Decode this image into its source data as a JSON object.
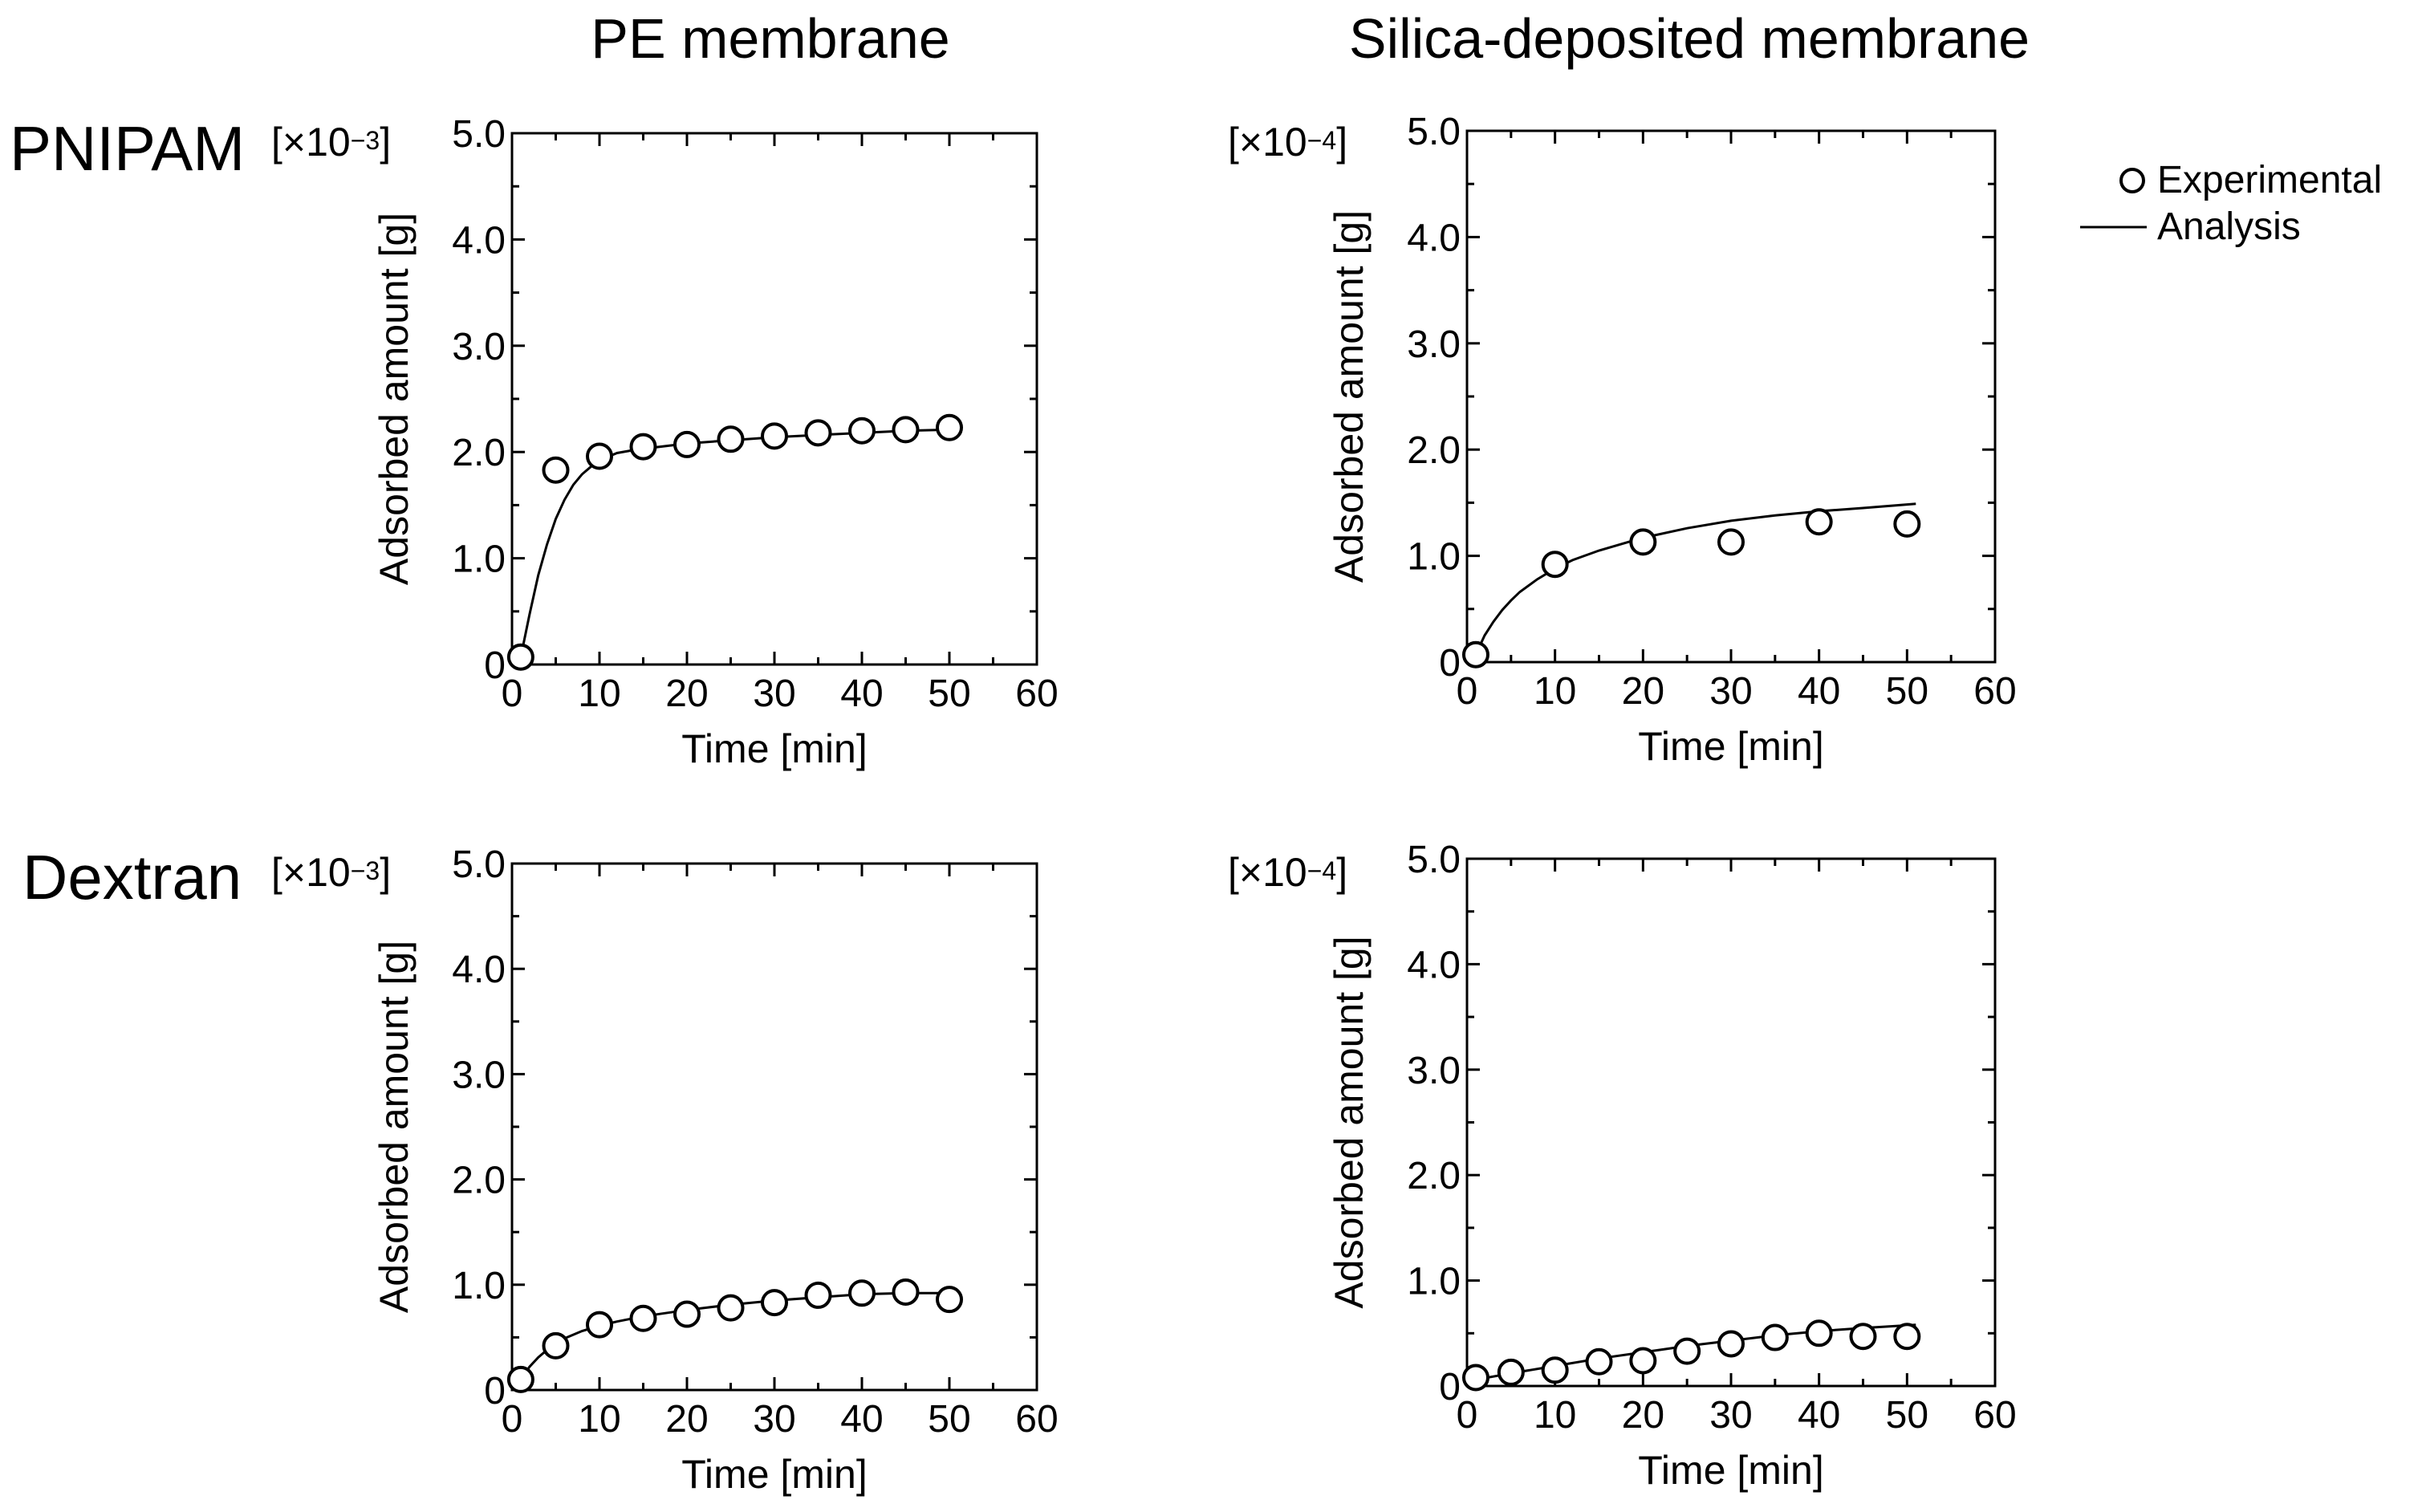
{
  "column_titles": [
    "PE membrane",
    "Silica-deposited membrane"
  ],
  "row_titles": [
    "PNIPAM",
    "Dextran"
  ],
  "legend": {
    "experimental_label": "Experimental",
    "analysis_label": "Analysis",
    "marker": "open-circle-icon",
    "line": "solid-line"
  },
  "chart_data": [
    {
      "type": "scatter",
      "id": "pnipam-pe",
      "row": "PNIPAM",
      "column": "PE membrane",
      "scale_label": {
        "base": "[×10",
        "exp": "−3",
        "close": "]"
      },
      "xlabel": "Time [min]",
      "ylabel": "Adsorbed amount [g]",
      "xlim": [
        0,
        60
      ],
      "ylim": [
        0,
        5.0
      ],
      "xticks": [
        0,
        10,
        20,
        30,
        40,
        50,
        60
      ],
      "xtick_labels": [
        "0",
        "10",
        "20",
        "30",
        "40",
        "50",
        "60"
      ],
      "yticks": [
        0,
        1.0,
        2.0,
        3.0,
        4.0,
        5.0
      ],
      "ytick_labels": [
        "0",
        "1.0",
        "2.0",
        "3.0",
        "4.0",
        "5.0"
      ],
      "grid": false,
      "series": [
        {
          "name": "Experimental",
          "style": "open-circle",
          "x": [
            1,
            5,
            10,
            15,
            20,
            25,
            30,
            35,
            40,
            45,
            50
          ],
          "y": [
            0.07,
            1.83,
            1.96,
            2.05,
            2.07,
            2.12,
            2.15,
            2.18,
            2.2,
            2.21,
            2.23
          ]
        },
        {
          "name": "Analysis",
          "style": "line",
          "x": [
            1,
            2,
            3,
            4,
            5,
            6,
            7,
            8,
            9,
            10,
            12,
            14,
            16,
            18,
            20,
            25,
            30,
            35,
            40,
            45,
            50
          ],
          "y": [
            0.07,
            0.47,
            0.84,
            1.13,
            1.37,
            1.55,
            1.69,
            1.79,
            1.86,
            1.92,
            1.99,
            2.02,
            2.04,
            2.06,
            2.08,
            2.11,
            2.14,
            2.16,
            2.18,
            2.2,
            2.21
          ]
        }
      ]
    },
    {
      "type": "scatter",
      "id": "pnipam-silica",
      "row": "PNIPAM",
      "column": "Silica-deposited membrane",
      "scale_label": {
        "base": "[×10",
        "exp": "−4",
        "close": "]"
      },
      "xlabel": "Time [min]",
      "ylabel": "Adsorbed amount [g]",
      "xlim": [
        0,
        60
      ],
      "ylim": [
        0,
        5.0
      ],
      "xticks": [
        0,
        10,
        20,
        30,
        40,
        50,
        60
      ],
      "xtick_labels": [
        "0",
        "10",
        "20",
        "30",
        "40",
        "50",
        "60"
      ],
      "yticks": [
        0,
        1.0,
        2.0,
        3.0,
        4.0,
        5.0
      ],
      "ytick_labels": [
        "0",
        "1.0",
        "2.0",
        "3.0",
        "4.0",
        "5.0"
      ],
      "grid": false,
      "series": [
        {
          "name": "Experimental",
          "style": "open-circle",
          "x": [
            1,
            10,
            20,
            30,
            40,
            50
          ],
          "y": [
            0.07,
            0.92,
            1.13,
            1.13,
            1.32,
            1.3
          ]
        },
        {
          "name": "Analysis",
          "style": "line",
          "x": [
            1,
            2,
            3,
            4,
            5,
            6,
            8,
            10,
            12,
            15,
            20,
            25,
            30,
            35,
            40,
            45,
            51
          ],
          "y": [
            0.07,
            0.25,
            0.38,
            0.49,
            0.58,
            0.66,
            0.78,
            0.88,
            0.96,
            1.05,
            1.17,
            1.26,
            1.33,
            1.38,
            1.42,
            1.45,
            1.49
          ]
        }
      ]
    },
    {
      "type": "scatter",
      "id": "dextran-pe",
      "row": "Dextran",
      "column": "PE membrane",
      "scale_label": {
        "base": "[×10",
        "exp": "−3",
        "close": "]"
      },
      "xlabel": "Time [min]",
      "ylabel": "Adsorbed amount [g]",
      "xlim": [
        0,
        60
      ],
      "ylim": [
        0,
        5.0
      ],
      "xticks": [
        0,
        10,
        20,
        30,
        40,
        50,
        60
      ],
      "xtick_labels": [
        "0",
        "10",
        "20",
        "30",
        "40",
        "50",
        "60"
      ],
      "yticks": [
        0,
        1.0,
        2.0,
        3.0,
        4.0,
        5.0
      ],
      "ytick_labels": [
        "0",
        "1.0",
        "2.0",
        "3.0",
        "4.0",
        "5.0"
      ],
      "grid": false,
      "series": [
        {
          "name": "Experimental",
          "style": "open-circle",
          "x": [
            1,
            5,
            10,
            15,
            20,
            25,
            30,
            35,
            40,
            45,
            50
          ],
          "y": [
            0.1,
            0.42,
            0.62,
            0.68,
            0.72,
            0.78,
            0.83,
            0.9,
            0.92,
            0.93,
            0.86
          ]
        },
        {
          "name": "Analysis",
          "style": "line",
          "x": [
            1,
            2,
            3,
            4,
            5,
            6,
            8,
            10,
            12,
            15,
            20,
            25,
            30,
            35,
            40,
            45,
            50
          ],
          "y": [
            0.1,
            0.22,
            0.31,
            0.38,
            0.44,
            0.49,
            0.56,
            0.61,
            0.65,
            0.7,
            0.76,
            0.81,
            0.85,
            0.88,
            0.91,
            0.92,
            0.92
          ]
        }
      ]
    },
    {
      "type": "scatter",
      "id": "dextran-silica",
      "row": "Dextran",
      "column": "Silica-deposited membrane",
      "scale_label": {
        "base": "[×10",
        "exp": "−4",
        "close": "]"
      },
      "xlabel": "Time [min]",
      "ylabel": "Adsorbed amount [g]",
      "xlim": [
        0,
        60
      ],
      "ylim": [
        0,
        5.0
      ],
      "xticks": [
        0,
        10,
        20,
        30,
        40,
        50,
        60
      ],
      "xtick_labels": [
        "0",
        "10",
        "20",
        "30",
        "40",
        "50",
        "60"
      ],
      "yticks": [
        0,
        1.0,
        2.0,
        3.0,
        4.0,
        5.0
      ],
      "ytick_labels": [
        "0",
        "1.0",
        "2.0",
        "3.0",
        "4.0",
        "5.0"
      ],
      "grid": false,
      "series": [
        {
          "name": "Experimental",
          "style": "open-circle",
          "x": [
            1,
            5,
            10,
            15,
            20,
            25,
            30,
            35,
            40,
            45,
            50
          ],
          "y": [
            0.08,
            0.13,
            0.15,
            0.23,
            0.24,
            0.33,
            0.4,
            0.46,
            0.5,
            0.47,
            0.47
          ]
        },
        {
          "name": "Analysis",
          "style": "line",
          "x": [
            1,
            5,
            10,
            15,
            20,
            25,
            30,
            35,
            40,
            45,
            51
          ],
          "y": [
            0.06,
            0.12,
            0.19,
            0.26,
            0.32,
            0.38,
            0.43,
            0.48,
            0.52,
            0.55,
            0.58
          ]
        }
      ]
    }
  ]
}
